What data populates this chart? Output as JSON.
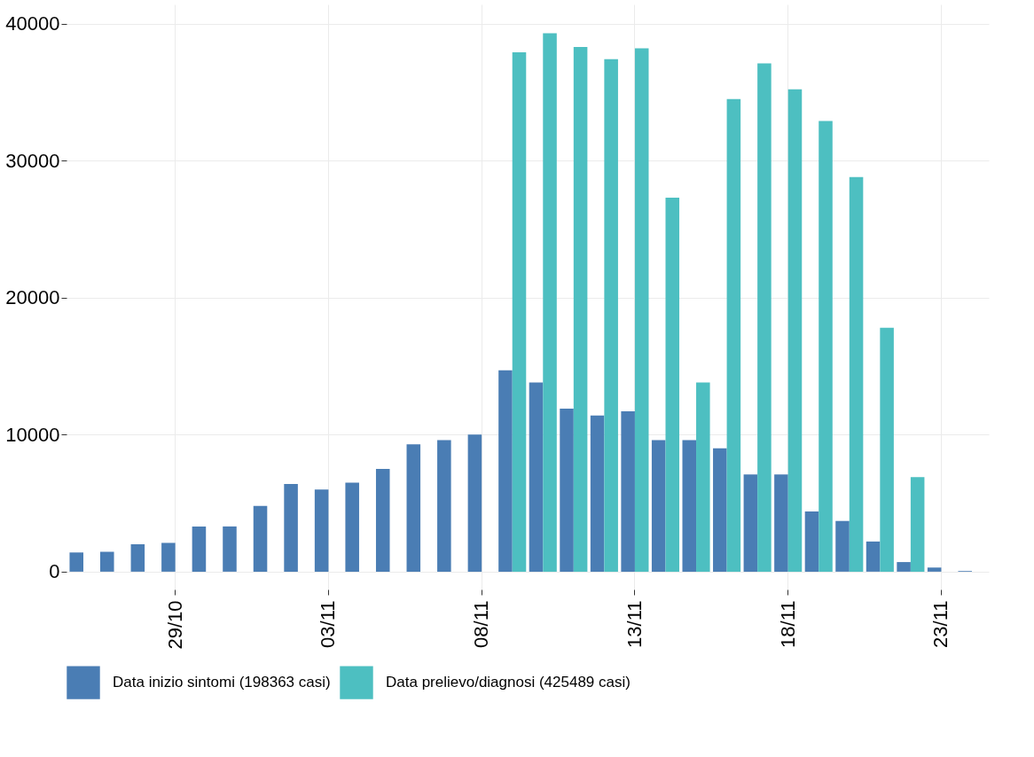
{
  "chart_data": {
    "type": "bar",
    "categories": [
      null,
      null,
      null,
      "29/10",
      null,
      null,
      null,
      null,
      "03/11",
      null,
      null,
      null,
      null,
      "08/11",
      null,
      null,
      null,
      null,
      "13/11",
      null,
      null,
      null,
      null,
      "18/11",
      null,
      null,
      null,
      null,
      "23/11",
      null
    ],
    "series": [
      {
        "name": "Data inizio sintomi (198363 casi)",
        "color": "#4a7db4",
        "values": [
          1400,
          1450,
          2000,
          2100,
          3300,
          3300,
          4800,
          6400,
          6000,
          6500,
          7500,
          9300,
          9600,
          10000,
          14700,
          13800,
          11900,
          11400,
          11700,
          9600,
          9600,
          9000,
          7100,
          7100,
          4400,
          3700,
          2200,
          700,
          300,
          50
        ]
      },
      {
        "name": "Data prelievo/diagnosi (425489 casi)",
        "color": "#4dbfc1",
        "values": [
          null,
          null,
          null,
          null,
          null,
          null,
          null,
          null,
          null,
          null,
          null,
          null,
          null,
          null,
          37900,
          39300,
          38300,
          37400,
          38200,
          27300,
          13800,
          34500,
          37100,
          35200,
          32900,
          28800,
          17800,
          6900,
          null,
          null
        ]
      }
    ],
    "ylim": [
      -1300,
      41400
    ],
    "yticks": [
      0,
      10000,
      20000,
      30000,
      40000
    ],
    "grid": true,
    "legend": "bottom"
  }
}
